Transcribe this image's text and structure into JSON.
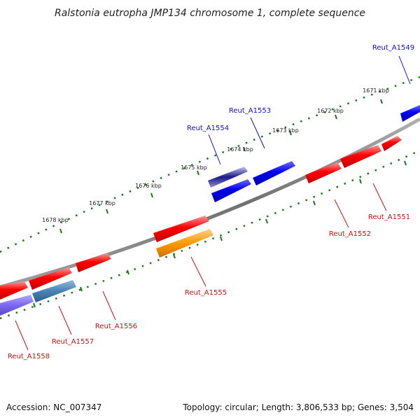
{
  "title": "Ralstonia eutropha JMP134 chromosome 1, complete sequence",
  "footer": {
    "accession": "Accession: NC_007347",
    "summary": "Topology: circular; Length: 3,806,533 bp; Genes: 3,504"
  },
  "scale_labels": [
    "1671 kbp",
    "1672 kbp",
    "1673 kbp",
    "1674 kbp",
    "1675 kbp",
    "1676 kbp",
    "1677 kbp",
    "1678 kbp"
  ],
  "genes": [
    {
      "name": "Reut_A1549",
      "color": "blue"
    },
    {
      "name": "Reut_A1553",
      "color": "blue"
    },
    {
      "name": "Reut_A1554",
      "color": "blue"
    },
    {
      "name": "Reut_A1551",
      "color": "red"
    },
    {
      "name": "Reut_A1552",
      "color": "red"
    },
    {
      "name": "Reut_A1555",
      "color": "red"
    },
    {
      "name": "Reut_A1556",
      "color": "red"
    },
    {
      "name": "Reut_A1557",
      "color": "red"
    },
    {
      "name": "Reut_A1558",
      "color": "red"
    }
  ],
  "colors": {
    "forward_strand": "#0000ee",
    "reverse_strand": "#ee0000",
    "backbone": "#808080",
    "ticks": "#1a7a1a",
    "highlight_orange": "#ff9900",
    "highlight_steel": "#4682b4",
    "highlight_purple": "#7b68ee",
    "highlight_navy": "#1a1a8a"
  }
}
